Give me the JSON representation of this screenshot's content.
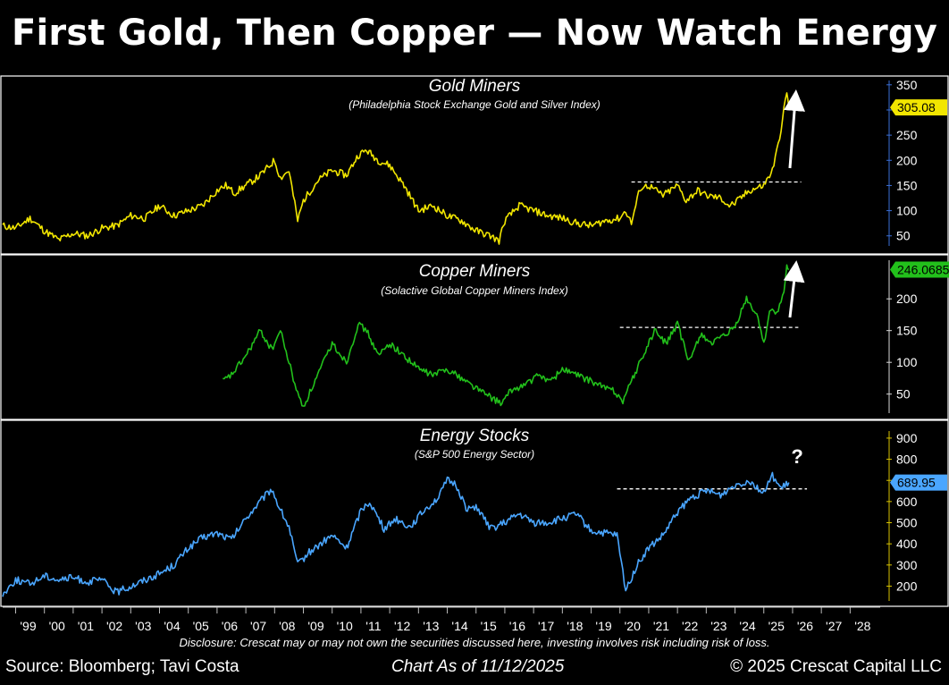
{
  "title": "First Gold, Then Copper — Now Watch Energy",
  "footer": {
    "source": "Source: Bloomberg; Tavi Costa",
    "as_of": "Chart As of 11/12/2025",
    "copyright": "© 2025 Crescat Capital LLC",
    "disclosure": "Disclosure: Crescat may or may not own the securities discussed here, investing involves risk including risk of loss."
  },
  "chart_data": [
    {
      "type": "line",
      "title": "Gold Miners",
      "subtitle": "(Philadelphia Stock Exchange Gold and Silver Index)",
      "color": "#f2e600",
      "ylim": [
        30,
        355
      ],
      "yticks": [
        50,
        100,
        150,
        200,
        250,
        300,
        350
      ],
      "last_value_label": "305.08",
      "last_value": 305.08,
      "resistance": {
        "level": 157,
        "x_start": 2020.4,
        "x_end": 2026.3
      },
      "annotation": "up-arrow",
      "x": [
        1998.55,
        1999.0,
        1999.5,
        2000.0,
        2000.5,
        2001.0,
        2001.5,
        2002.0,
        2002.5,
        2003.0,
        2003.5,
        2004.0,
        2004.5,
        2005.0,
        2005.5,
        2006.0,
        2006.3,
        2006.6,
        2007.0,
        2007.5,
        2008.0,
        2008.2,
        2008.5,
        2008.8,
        2009.0,
        2009.5,
        2010.0,
        2010.5,
        2010.9,
        2011.2,
        2011.6,
        2012.0,
        2012.5,
        2013.0,
        2013.5,
        2014.0,
        2014.5,
        2015.0,
        2015.5,
        2015.8,
        2016.0,
        2016.5,
        2017.0,
        2017.5,
        2018.0,
        2018.5,
        2019.0,
        2019.5,
        2020.0,
        2020.2,
        2020.4,
        2020.7,
        2021.0,
        2021.5,
        2022.0,
        2022.3,
        2022.7,
        2023.0,
        2023.5,
        2023.8,
        2024.0,
        2024.5,
        2025.0,
        2025.3,
        2025.5,
        2025.7,
        2025.8,
        2025.87
      ],
      "values": [
        70,
        65,
        85,
        60,
        42,
        55,
        50,
        65,
        70,
        90,
        85,
        110,
        90,
        100,
        110,
        140,
        150,
        135,
        150,
        170,
        200,
        165,
        180,
        80,
        120,
        160,
        180,
        170,
        210,
        220,
        200,
        190,
        150,
        100,
        110,
        90,
        80,
        60,
        50,
        40,
        80,
        110,
        100,
        90,
        85,
        75,
        70,
        80,
        85,
        100,
        75,
        145,
        150,
        130,
        150,
        120,
        140,
        130,
        125,
        110,
        115,
        140,
        150,
        180,
        230,
        300,
        335,
        305
      ]
    },
    {
      "type": "line",
      "title": "Copper Miners",
      "subtitle": "(Solactive Global Copper Miners Index)",
      "color": "#22c01b",
      "ylim": [
        20,
        258
      ],
      "yticks": [
        50,
        100,
        150,
        200
      ],
      "last_value_label": "246.0685",
      "last_value": 246.0685,
      "resistance": {
        "level": 155,
        "x_start": 2020.0,
        "x_end": 2026.2
      },
      "annotation": "up-arrow",
      "x": [
        2006.2,
        2006.5,
        2007.0,
        2007.5,
        2007.9,
        2008.2,
        2008.5,
        2008.8,
        2009.0,
        2009.5,
        2010.0,
        2010.5,
        2010.9,
        2011.2,
        2011.6,
        2012.0,
        2012.5,
        2013.0,
        2013.5,
        2014.0,
        2014.5,
        2015.0,
        2015.5,
        2015.9,
        2016.2,
        2016.7,
        2017.2,
        2017.6,
        2018.0,
        2018.5,
        2019.0,
        2019.5,
        2019.8,
        2020.1,
        2020.4,
        2020.8,
        2021.2,
        2021.6,
        2022.0,
        2022.4,
        2022.8,
        2023.2,
        2023.6,
        2024.0,
        2024.4,
        2024.8,
        2025.0,
        2025.2,
        2025.5,
        2025.7,
        2025.8,
        2025.87
      ],
      "values": [
        70,
        80,
        110,
        150,
        120,
        150,
        100,
        50,
        30,
        80,
        130,
        100,
        160,
        150,
        110,
        130,
        110,
        90,
        80,
        90,
        75,
        60,
        45,
        35,
        55,
        65,
        80,
        70,
        90,
        80,
        70,
        60,
        55,
        40,
        70,
        110,
        150,
        130,
        160,
        100,
        145,
        130,
        140,
        155,
        200,
        170,
        130,
        180,
        180,
        210,
        250,
        246
      ]
    },
    {
      "type": "line",
      "title": "Energy Stocks",
      "subtitle": "(S&P 500 Energy Sector)",
      "color": "#4aa6ff",
      "ylim": [
        130,
        925
      ],
      "yticks": [
        200,
        300,
        400,
        500,
        600,
        700,
        800,
        900
      ],
      "last_value_label": "689.95",
      "last_value": 689.95,
      "resistance": {
        "level": 660,
        "x_start": 2019.9,
        "x_end": 2026.5
      },
      "annotation": "?",
      "x": [
        1998.55,
        1999.0,
        1999.5,
        2000.0,
        2000.5,
        2001.0,
        2001.5,
        2002.0,
        2002.5,
        2003.0,
        2003.5,
        2004.0,
        2004.5,
        2005.0,
        2005.5,
        2006.0,
        2006.5,
        2007.0,
        2007.5,
        2007.9,
        2008.2,
        2008.5,
        2008.8,
        2009.2,
        2009.6,
        2010.0,
        2010.5,
        2011.0,
        2011.3,
        2011.8,
        2012.2,
        2012.7,
        2013.2,
        2013.7,
        2014.0,
        2014.3,
        2014.7,
        2015.0,
        2015.5,
        2016.0,
        2016.5,
        2017.0,
        2017.5,
        2018.0,
        2018.5,
        2019.0,
        2019.5,
        2019.9,
        2020.2,
        2020.6,
        2021.0,
        2021.5,
        2022.0,
        2022.5,
        2023.0,
        2023.5,
        2024.0,
        2024.5,
        2025.0,
        2025.3,
        2025.6,
        2025.87
      ],
      "values": [
        160,
        230,
        210,
        250,
        230,
        240,
        220,
        230,
        170,
        200,
        230,
        260,
        300,
        380,
        430,
        450,
        420,
        520,
        600,
        660,
        560,
        480,
        300,
        360,
        400,
        440,
        380,
        560,
        600,
        470,
        520,
        480,
        560,
        620,
        700,
        680,
        560,
        580,
        470,
        500,
        540,
        500,
        500,
        520,
        540,
        460,
        450,
        440,
        180,
        300,
        380,
        440,
        550,
        620,
        650,
        630,
        680,
        700,
        640,
        720,
        660,
        690
      ]
    }
  ],
  "x_axis": {
    "tick_labels": [
      "'99",
      "'00",
      "'01",
      "'02",
      "'03",
      "'04",
      "'05",
      "'06",
      "'07",
      "'08",
      "'09",
      "'10",
      "'11",
      "'12",
      "'13",
      "'14",
      "'15",
      "'16",
      "'17",
      "'18",
      "'19",
      "'20",
      "'21",
      "'22",
      "'23",
      "'24",
      "'25",
      "'26",
      "'27",
      "'28"
    ],
    "tick_years": [
      1999,
      2000,
      2001,
      2002,
      2003,
      2004,
      2005,
      2006,
      2007,
      2008,
      2009,
      2010,
      2011,
      2012,
      2013,
      2014,
      2015,
      2016,
      2017,
      2018,
      2019,
      2020,
      2021,
      2022,
      2023,
      2024,
      2025,
      2026,
      2027,
      2028
    ],
    "xlim": [
      1998.55,
      2029.2
    ]
  },
  "colors": {
    "background": "#000000",
    "text": "#ffffff",
    "panel_border": "#ffffff",
    "axis_accent": "#3a6fd8"
  }
}
